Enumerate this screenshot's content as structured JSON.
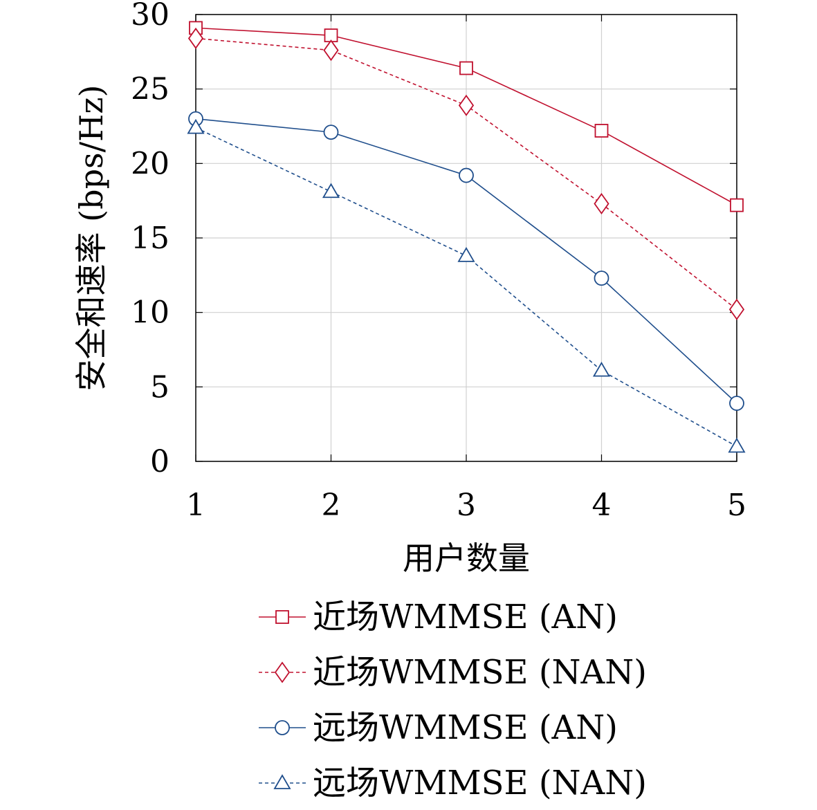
{
  "chart_data": {
    "type": "line",
    "title": "",
    "xlabel": "用户数量",
    "ylabel": "安全和速率 (bps/Hz)",
    "x": [
      1,
      2,
      3,
      4,
      5
    ],
    "xlim": [
      1,
      5
    ],
    "ylim": [
      0,
      30
    ],
    "xticks": [
      1,
      2,
      3,
      4,
      5
    ],
    "yticks": [
      0,
      5,
      10,
      15,
      20,
      25,
      30
    ],
    "grid": true,
    "legend_position": "below",
    "series": [
      {
        "name": "近场WMMSE (AN)",
        "values": [
          29.1,
          28.6,
          26.4,
          22.2,
          17.2
        ],
        "color": "#c0102e",
        "marker": "square",
        "line": "solid"
      },
      {
        "name": "近场WMMSE (NAN)",
        "values": [
          28.4,
          27.6,
          23.9,
          17.3,
          10.2
        ],
        "color": "#c0102e",
        "marker": "diamond",
        "line": "dashed"
      },
      {
        "name": "远场WMMSE (AN)",
        "values": [
          23.0,
          22.1,
          19.2,
          12.3,
          3.9
        ],
        "color": "#1f4e8c",
        "marker": "circle",
        "line": "solid"
      },
      {
        "name": "远场WMMSE (NAN)",
        "values": [
          22.4,
          18.1,
          13.8,
          6.1,
          1.0
        ],
        "color": "#1f4e8c",
        "marker": "triangle",
        "line": "dashed"
      }
    ]
  }
}
